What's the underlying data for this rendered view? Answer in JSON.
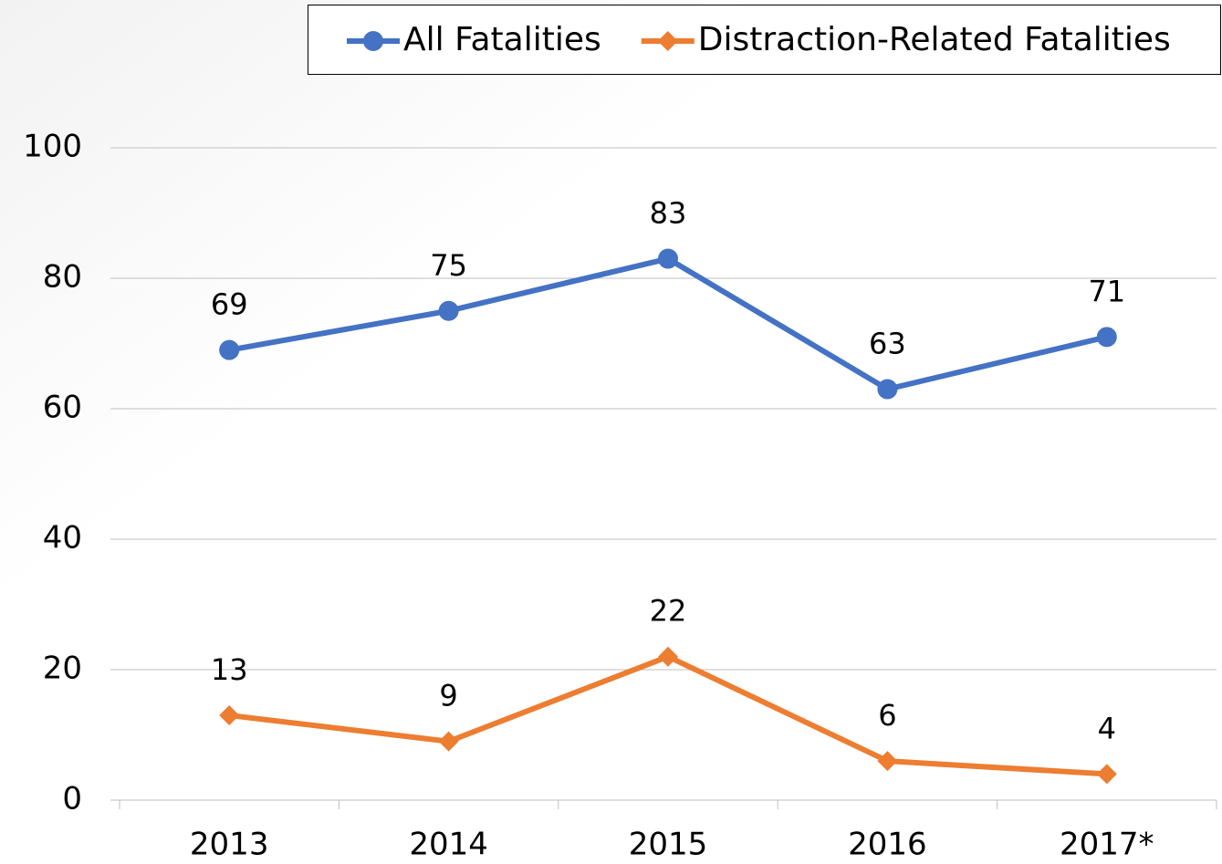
{
  "chart_data": {
    "type": "line",
    "categories": [
      "2013",
      "2014",
      "2015",
      "2016",
      "2017*"
    ],
    "series": [
      {
        "name": "All Fatalities",
        "color": "#4472c4",
        "marker": "circle",
        "values": [
          69,
          75,
          83,
          63,
          71
        ]
      },
      {
        "name": "Distraction-Related Fatalities",
        "color": "#ed7d31",
        "marker": "diamond",
        "values": [
          13,
          9,
          22,
          6,
          4
        ]
      }
    ],
    "ylim": [
      0,
      100
    ],
    "yticks": [
      0,
      20,
      40,
      60,
      80,
      100
    ],
    "grid": true,
    "legend": "top",
    "data_labels": true
  }
}
